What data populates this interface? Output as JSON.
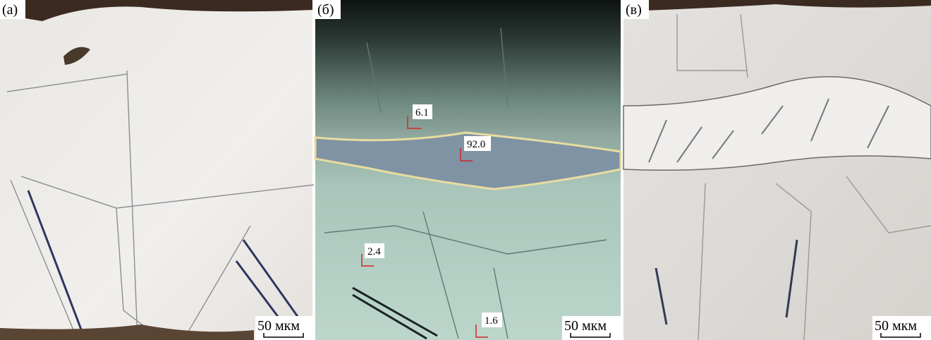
{
  "panels": [
    {
      "label": "(а)",
      "scale_bar": "50 мкм"
    },
    {
      "label": "(б)",
      "scale_bar": "50 мкм",
      "measurements": [
        "6.1",
        "92.0",
        "2.4",
        "1.6"
      ]
    },
    {
      "label": "(в)",
      "scale_bar": "50 мкм"
    }
  ]
}
